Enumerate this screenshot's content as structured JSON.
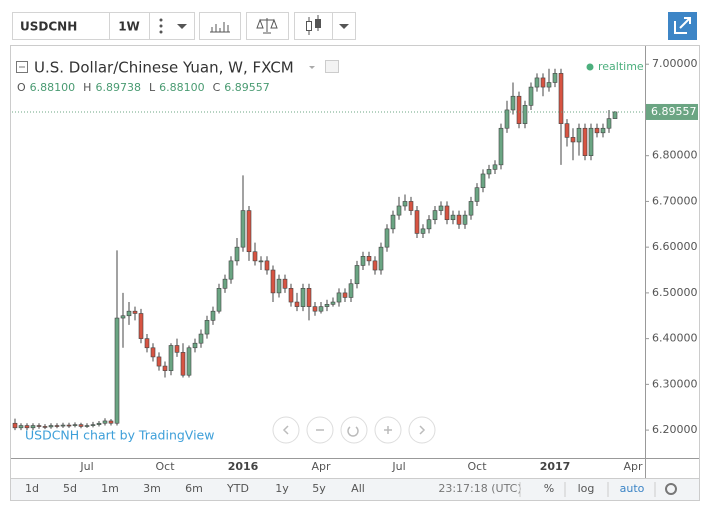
{
  "chart_data": {
    "type": "candlestick",
    "symbol": "USDCNH",
    "interval": "1W",
    "title": "U.S. Dollar/Chinese Yuan, W, FXCM",
    "ohlc_legend": [
      {
        "label": "O",
        "value": "6.88100"
      },
      {
        "label": "H",
        "value": "6.89738"
      },
      {
        "label": "L",
        "value": "6.88100"
      },
      {
        "label": "C",
        "value": "6.89557"
      }
    ],
    "status": "realtime",
    "last_price_label": "6.89557",
    "watermark": "USDCNH chart by TradingView",
    "up_color": "#6ba583",
    "down_color": "#d75442",
    "categories": [
      null,
      null,
      null,
      null,
      null,
      null,
      null,
      null,
      null,
      null,
      null,
      null,
      "Jul",
      null,
      null,
      null,
      null,
      null,
      null,
      null,
      null,
      null,
      null,
      null,
      null,
      "Oct",
      null,
      null,
      null,
      null,
      null,
      null,
      null,
      null,
      null,
      null,
      null,
      null,
      "2016",
      null,
      null,
      null,
      null,
      null,
      null,
      null,
      null,
      null,
      null,
      null,
      null,
      "Apr",
      null,
      null,
      null,
      null,
      null,
      null,
      null,
      null,
      null,
      null,
      null,
      null,
      "Jul",
      null,
      null,
      null,
      null,
      null,
      null,
      null,
      null,
      null,
      null,
      null,
      null,
      "Oct",
      null,
      null,
      null,
      null,
      null,
      null,
      null,
      null,
      null,
      null,
      null,
      null,
      "2017",
      null,
      null,
      null,
      null,
      null,
      null,
      null,
      null,
      null,
      null,
      null,
      null,
      "Apr"
    ],
    "open": [
      6.215,
      6.205,
      6.21,
      6.205,
      6.21,
      6.208,
      6.207,
      6.21,
      6.209,
      6.211,
      6.21,
      6.212,
      6.208,
      6.21,
      6.212,
      6.215,
      6.22,
      6.215,
      6.445,
      6.45,
      6.46,
      6.455,
      6.4,
      6.38,
      6.36,
      6.34,
      6.33,
      6.385,
      6.37,
      6.32,
      6.38,
      6.39,
      6.41,
      6.44,
      6.46,
      6.51,
      6.53,
      6.57,
      6.6,
      6.68,
      6.59,
      6.57,
      6.57,
      6.55,
      6.5,
      6.53,
      6.51,
      6.48,
      6.47,
      6.51,
      6.47,
      6.46,
      6.47,
      6.475,
      6.48,
      6.5,
      6.49,
      6.52,
      6.56,
      6.58,
      6.57,
      6.55,
      6.6,
      6.64,
      6.67,
      6.69,
      6.7,
      6.68,
      6.63,
      6.64,
      6.66,
      6.68,
      6.69,
      6.66,
      6.67,
      6.65,
      6.67,
      6.7,
      6.73,
      6.76,
      6.77,
      6.78,
      6.86,
      6.9,
      6.93,
      6.87,
      6.91,
      6.95,
      6.97,
      6.95,
      6.96,
      6.98,
      6.87,
      6.84,
      6.83,
      6.86,
      6.8,
      6.86,
      6.85,
      6.86,
      6.881,
      null,
      null,
      null
    ],
    "high": [
      6.225,
      6.215,
      6.215,
      6.215,
      6.215,
      6.213,
      6.215,
      6.215,
      6.216,
      6.216,
      6.217,
      6.216,
      6.215,
      6.218,
      6.22,
      6.226,
      6.224,
      6.593,
      6.5,
      6.48,
      6.47,
      6.465,
      6.41,
      6.39,
      6.37,
      6.35,
      6.39,
      6.4,
      6.39,
      6.385,
      6.4,
      6.42,
      6.45,
      6.47,
      6.52,
      6.54,
      6.58,
      6.62,
      6.757,
      6.69,
      6.61,
      6.58,
      6.58,
      6.56,
      6.54,
      6.54,
      6.52,
      6.5,
      6.52,
      6.52,
      6.48,
      6.48,
      6.485,
      6.49,
      6.51,
      6.51,
      6.53,
      6.57,
      6.59,
      6.59,
      6.58,
      6.61,
      6.65,
      6.68,
      6.71,
      6.715,
      6.71,
      6.69,
      6.65,
      6.67,
      6.69,
      6.7,
      6.7,
      6.68,
      6.68,
      6.68,
      6.71,
      6.74,
      6.77,
      6.78,
      6.79,
      6.87,
      6.92,
      6.96,
      6.94,
      6.92,
      6.96,
      6.98,
      6.98,
      6.99,
      6.99,
      6.99,
      6.88,
      6.86,
      6.87,
      6.87,
      6.87,
      6.87,
      6.87,
      6.9,
      6.89738,
      null,
      null,
      null
    ],
    "low": [
      6.2,
      6.2,
      6.2,
      6.2,
      6.203,
      6.202,
      6.203,
      6.204,
      6.205,
      6.205,
      6.206,
      6.204,
      6.205,
      6.206,
      6.208,
      6.21,
      6.21,
      6.21,
      6.38,
      6.43,
      6.44,
      6.39,
      6.37,
      6.35,
      6.33,
      6.315,
      6.32,
      6.36,
      6.315,
      6.315,
      6.37,
      6.38,
      6.4,
      6.43,
      6.455,
      6.5,
      6.52,
      6.56,
      6.59,
      6.57,
      6.56,
      6.55,
      6.54,
      6.48,
      6.49,
      6.5,
      6.47,
      6.46,
      6.46,
      6.44,
      6.45,
      6.455,
      6.46,
      6.47,
      6.47,
      6.48,
      6.48,
      6.51,
      6.55,
      6.56,
      6.54,
      6.54,
      6.59,
      6.63,
      6.66,
      6.68,
      6.67,
      6.62,
      6.62,
      6.63,
      6.65,
      6.67,
      6.65,
      6.65,
      6.64,
      6.64,
      6.66,
      6.69,
      6.72,
      6.75,
      6.76,
      6.77,
      6.85,
      6.89,
      6.86,
      6.86,
      6.9,
      6.94,
      6.93,
      6.94,
      6.95,
      6.78,
      6.82,
      6.79,
      6.8,
      6.79,
      6.79,
      6.84,
      6.84,
      6.85,
      6.881,
      null,
      null,
      null
    ],
    "close": [
      6.205,
      6.21,
      6.205,
      6.21,
      6.208,
      6.207,
      6.21,
      6.209,
      6.211,
      6.21,
      6.212,
      6.208,
      6.21,
      6.212,
      6.215,
      6.22,
      6.215,
      6.445,
      6.45,
      6.46,
      6.455,
      6.4,
      6.38,
      6.36,
      6.34,
      6.33,
      6.385,
      6.37,
      6.32,
      6.38,
      6.39,
      6.41,
      6.44,
      6.46,
      6.51,
      6.53,
      6.57,
      6.6,
      6.68,
      6.59,
      6.57,
      6.57,
      6.55,
      6.5,
      6.53,
      6.51,
      6.48,
      6.47,
      6.51,
      6.47,
      6.46,
      6.47,
      6.475,
      6.48,
      6.5,
      6.49,
      6.52,
      6.56,
      6.58,
      6.57,
      6.55,
      6.6,
      6.64,
      6.67,
      6.69,
      6.7,
      6.68,
      6.63,
      6.64,
      6.66,
      6.68,
      6.69,
      6.66,
      6.67,
      6.65,
      6.67,
      6.7,
      6.73,
      6.76,
      6.77,
      6.78,
      6.86,
      6.9,
      6.93,
      6.87,
      6.91,
      6.95,
      6.97,
      6.95,
      6.96,
      6.98,
      6.87,
      6.84,
      6.83,
      6.86,
      6.8,
      6.86,
      6.85,
      6.86,
      6.881,
      6.89557,
      null,
      null,
      null
    ],
    "ylim": [
      6.139,
      7.042
    ],
    "yticks": [
      {
        "value": 6.2,
        "label": "6.20000"
      },
      {
        "value": 6.3,
        "label": "6.30000"
      },
      {
        "value": 6.4,
        "label": "6.40000"
      },
      {
        "value": 6.5,
        "label": "6.50000"
      },
      {
        "value": 6.6,
        "label": "6.60000"
      },
      {
        "value": 6.7,
        "label": "6.70000"
      },
      {
        "value": 6.8,
        "label": "6.80000"
      },
      {
        "value": 6.9,
        "label": "6.90000"
      },
      {
        "value": 7.0,
        "label": "7.00000"
      }
    ],
    "toolbar": {
      "ranges": [
        "1d",
        "5d",
        "1m",
        "3m",
        "6m",
        "YTD",
        "1y",
        "5y",
        "All"
      ],
      "time": "23:17:18 (UTC)",
      "percent": "%",
      "log": "log",
      "auto": "auto"
    }
  }
}
